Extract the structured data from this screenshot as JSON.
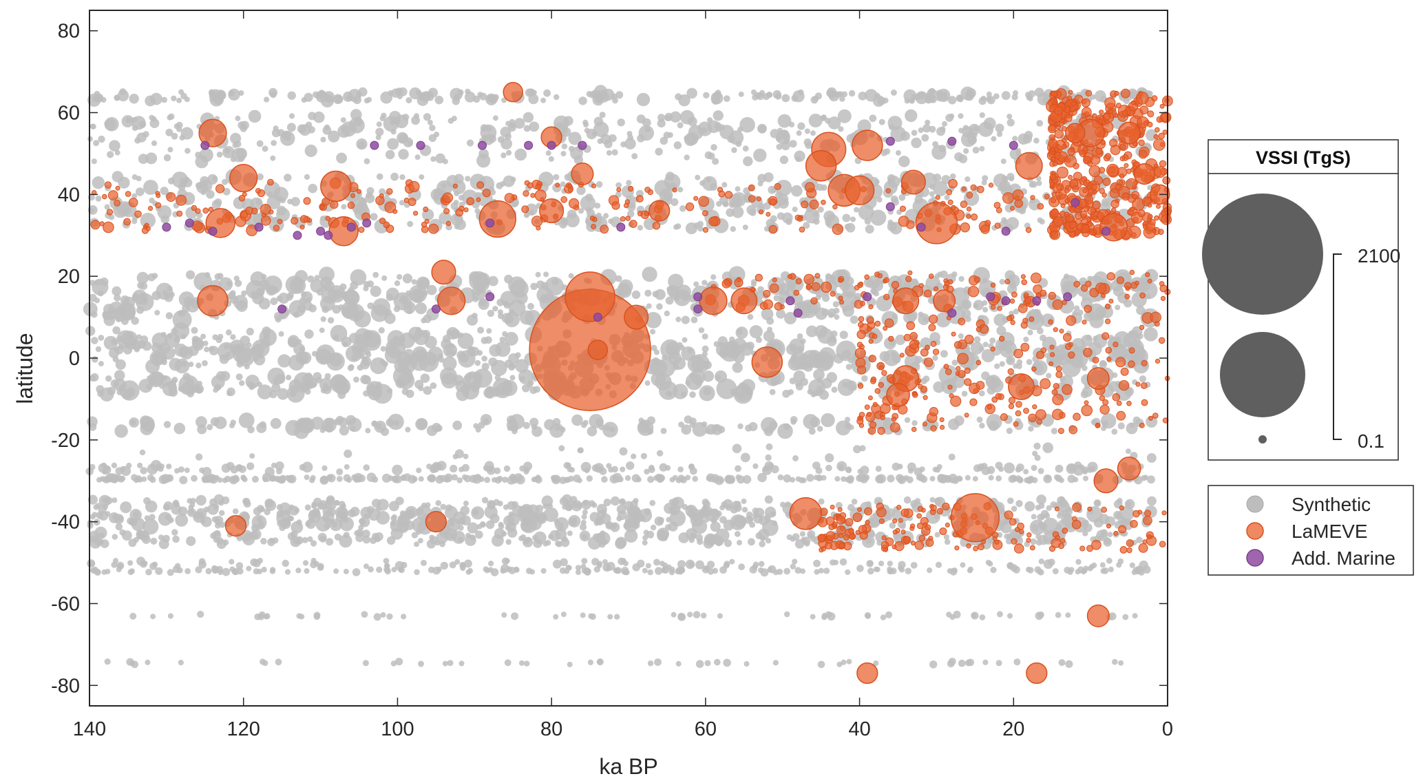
{
  "chart_data": {
    "type": "scatter",
    "xlabel": "ka BP",
    "ylabel": "latitude",
    "xlim": [
      140,
      0
    ],
    "ylim": [
      -85,
      85
    ],
    "x_reversed": true,
    "xticks": [
      140,
      120,
      100,
      80,
      60,
      40,
      20,
      0
    ],
    "yticks": [
      -80,
      -60,
      -40,
      -20,
      0,
      20,
      40,
      60,
      80
    ],
    "grid": false,
    "colors": {
      "Synthetic": "#bdbdbd",
      "LaMEVE": "#e8612c",
      "Add. Marine": "#8e4ba0",
      "size_glyph": "#5f5f5f",
      "axis": "#262626"
    },
    "size_legend": {
      "title": "VSSI (TgS)",
      "max_label": "2100",
      "min_label": "0.1"
    },
    "series_legend": [
      {
        "label": "Synthetic",
        "color": "#bdbdbd"
      },
      {
        "label": "LaMEVE",
        "color": "#e8612c"
      },
      {
        "label": "Add. Marine",
        "color": "#8e4ba0"
      }
    ],
    "series": [
      {
        "name": "Synthetic",
        "color": "#bdbdbd",
        "bands": [
          {
            "lat": 64,
            "spread": 1.2,
            "x_range": [
              140,
              2
            ],
            "count": 230,
            "r_range": [
              4,
              10
            ]
          },
          {
            "lat": 56.5,
            "spread": 3,
            "x_range": [
              140,
              2
            ],
            "count": 230,
            "r_range": [
              4,
              12
            ]
          },
          {
            "lat": 51,
            "spread": 3,
            "x_range": [
              140,
              2
            ],
            "count": 160,
            "r_range": [
              4,
              11
            ]
          },
          {
            "lat": 41.5,
            "spread": 3,
            "x_range": [
              140,
              2
            ],
            "count": 240,
            "r_range": [
              4,
              12
            ]
          },
          {
            "lat": 35,
            "spread": 3.5,
            "x_range": [
              140,
              2
            ],
            "count": 260,
            "r_range": [
              4,
              12
            ]
          },
          {
            "lat": 17.5,
            "spread": 3,
            "x_range": [
              140,
              2
            ],
            "count": 280,
            "r_range": [
              4,
              14
            ]
          },
          {
            "lat": 12,
            "spread": 3,
            "x_range": [
              140,
              2
            ],
            "count": 260,
            "r_range": [
              4,
              14
            ]
          },
          {
            "lat": 4.5,
            "spread": 2.5,
            "x_range": [
              140,
              2
            ],
            "count": 200,
            "r_range": [
              4,
              13
            ]
          },
          {
            "lat": 0,
            "spread": 2.5,
            "x_range": [
              140,
              2
            ],
            "count": 300,
            "r_range": [
              4,
              15
            ]
          },
          {
            "lat": -6.5,
            "spread": 2.5,
            "x_range": [
              140,
              2
            ],
            "count": 300,
            "r_range": [
              4,
              15
            ]
          },
          {
            "lat": -16.5,
            "spread": 1.5,
            "x_range": [
              140,
              2
            ],
            "count": 170,
            "r_range": [
              4,
              12
            ]
          },
          {
            "lat": -23,
            "spread": 1.5,
            "x_range": [
              140,
              2
            ],
            "count": 30,
            "r_range": [
              4,
              8
            ]
          },
          {
            "lat": -27,
            "spread": 0.8,
            "x_range": [
              140,
              2
            ],
            "count": 150,
            "r_range": [
              4,
              8
            ]
          },
          {
            "lat": -29.5,
            "spread": 0.4,
            "x_range": [
              140,
              2
            ],
            "count": 260,
            "r_range": [
              4,
              7
            ]
          },
          {
            "lat": -36,
            "spread": 1.5,
            "x_range": [
              140,
              2
            ],
            "count": 200,
            "r_range": [
              4,
              9
            ]
          },
          {
            "lat": -39.5,
            "spread": 2,
            "x_range": [
              140,
              2
            ],
            "count": 340,
            "r_range": [
              4,
              12
            ]
          },
          {
            "lat": -44,
            "spread": 1.5,
            "x_range": [
              140,
              2
            ],
            "count": 260,
            "r_range": [
              4,
              10
            ]
          },
          {
            "lat": -50.5,
            "spread": 1,
            "x_range": [
              140,
              2
            ],
            "count": 120,
            "r_range": [
              4,
              7
            ]
          },
          {
            "lat": -52,
            "spread": 0.4,
            "x_range": [
              140,
              2
            ],
            "count": 150,
            "r_range": [
              4,
              6
            ]
          },
          {
            "lat": -63,
            "spread": 0.4,
            "x_range": [
              136,
              2
            ],
            "count": 60,
            "r_range": [
              4,
              6
            ]
          },
          {
            "lat": -74.5,
            "spread": 0.4,
            "x_range": [
              138,
              2
            ],
            "count": 50,
            "r_range": [
              4,
              6
            ]
          }
        ]
      },
      {
        "name": "LaMEVE",
        "color": "#e8612c",
        "points": [
          [
            75,
            2,
            2100
          ],
          [
            75,
            15,
            280
          ],
          [
            25,
            -39,
            260
          ],
          [
            124,
            14,
            80
          ],
          [
            124,
            55,
            60
          ],
          [
            120,
            44,
            60
          ],
          [
            123,
            33,
            70
          ],
          [
            108,
            42,
            80
          ],
          [
            107,
            31,
            70
          ],
          [
            87,
            34,
            130
          ],
          [
            94,
            21,
            40
          ],
          [
            93,
            14,
            60
          ],
          [
            69,
            10,
            40
          ],
          [
            59,
            14,
            60
          ],
          [
            55,
            14,
            50
          ],
          [
            52,
            -1,
            80
          ],
          [
            47,
            -38,
            90
          ],
          [
            44,
            51,
            110
          ],
          [
            45,
            47,
            80
          ],
          [
            39,
            52,
            80
          ],
          [
            42,
            41,
            90
          ],
          [
            40,
            41,
            70
          ],
          [
            30,
            33,
            180
          ],
          [
            34,
            14,
            50
          ],
          [
            34,
            -5,
            50
          ],
          [
            35,
            -9,
            35
          ],
          [
            19,
            -7,
            50
          ],
          [
            18,
            47,
            55
          ],
          [
            10,
            55,
            60
          ],
          [
            7,
            32,
            60
          ],
          [
            9,
            -5,
            30
          ],
          [
            8,
            -30,
            40
          ],
          [
            5,
            -27,
            35
          ],
          [
            9,
            -63,
            30
          ],
          [
            17,
            -77,
            25
          ],
          [
            39,
            -77,
            25
          ],
          [
            76,
            45,
            30
          ],
          [
            80,
            54,
            25
          ],
          [
            121,
            -41,
            25
          ],
          [
            95,
            -40,
            25
          ],
          [
            85,
            65,
            20
          ],
          [
            74,
            2,
            20
          ],
          [
            80,
            36,
            40
          ],
          [
            66,
            36,
            25
          ],
          [
            33,
            43,
            40
          ],
          [
            29,
            14,
            30
          ],
          [
            12,
            55,
            20
          ],
          [
            5,
            55,
            30
          ],
          [
            3,
            45,
            25
          ],
          [
            1,
            40,
            20
          ]
        ],
        "dense_clusters": [
          {
            "x_range": [
              15,
              0
            ],
            "y_range": [
              30,
              65
            ],
            "count": 420,
            "r_range": [
              3,
              9
            ]
          },
          {
            "x_range": [
              140,
              0
            ],
            "y_range": [
              31,
              43
            ],
            "count": 260,
            "r_range": [
              3,
              8
            ]
          },
          {
            "x_range": [
              60,
              0
            ],
            "y_range": [
              12,
              21
            ],
            "count": 120,
            "r_range": [
              3,
              8
            ]
          },
          {
            "x_range": [
              40,
              0
            ],
            "y_range": [
              -18,
              10
            ],
            "count": 220,
            "r_range": [
              3,
              8
            ]
          },
          {
            "x_range": [
              45,
              0
            ],
            "y_range": [
              -47,
              -36
            ],
            "count": 160,
            "r_range": [
              3,
              7
            ]
          }
        ]
      },
      {
        "name": "Add. Marine",
        "color": "#8e4ba0",
        "points": [
          [
            125,
            52
          ],
          [
            103,
            52
          ],
          [
            97,
            52
          ],
          [
            89,
            52
          ],
          [
            83,
            52
          ],
          [
            80,
            52
          ],
          [
            76,
            52
          ],
          [
            28,
            53
          ],
          [
            20,
            52
          ],
          [
            36,
            53
          ],
          [
            130,
            32
          ],
          [
            127,
            33
          ],
          [
            124,
            31
          ],
          [
            118,
            32
          ],
          [
            113,
            30
          ],
          [
            110,
            31
          ],
          [
            109,
            30
          ],
          [
            106,
            32
          ],
          [
            104,
            33
          ],
          [
            88,
            33
          ],
          [
            71,
            32
          ],
          [
            32,
            32
          ],
          [
            21,
            31
          ],
          [
            8,
            31
          ],
          [
            115,
            12
          ],
          [
            95,
            12
          ],
          [
            88,
            15
          ],
          [
            61,
            15
          ],
          [
            61,
            12
          ],
          [
            49,
            14
          ],
          [
            48,
            11
          ],
          [
            39,
            15
          ],
          [
            23,
            15
          ],
          [
            21,
            14
          ],
          [
            17,
            14
          ],
          [
            13,
            15
          ],
          [
            28,
            11
          ],
          [
            74,
            10
          ],
          [
            36,
            37
          ],
          [
            12,
            38
          ]
        ]
      }
    ]
  }
}
